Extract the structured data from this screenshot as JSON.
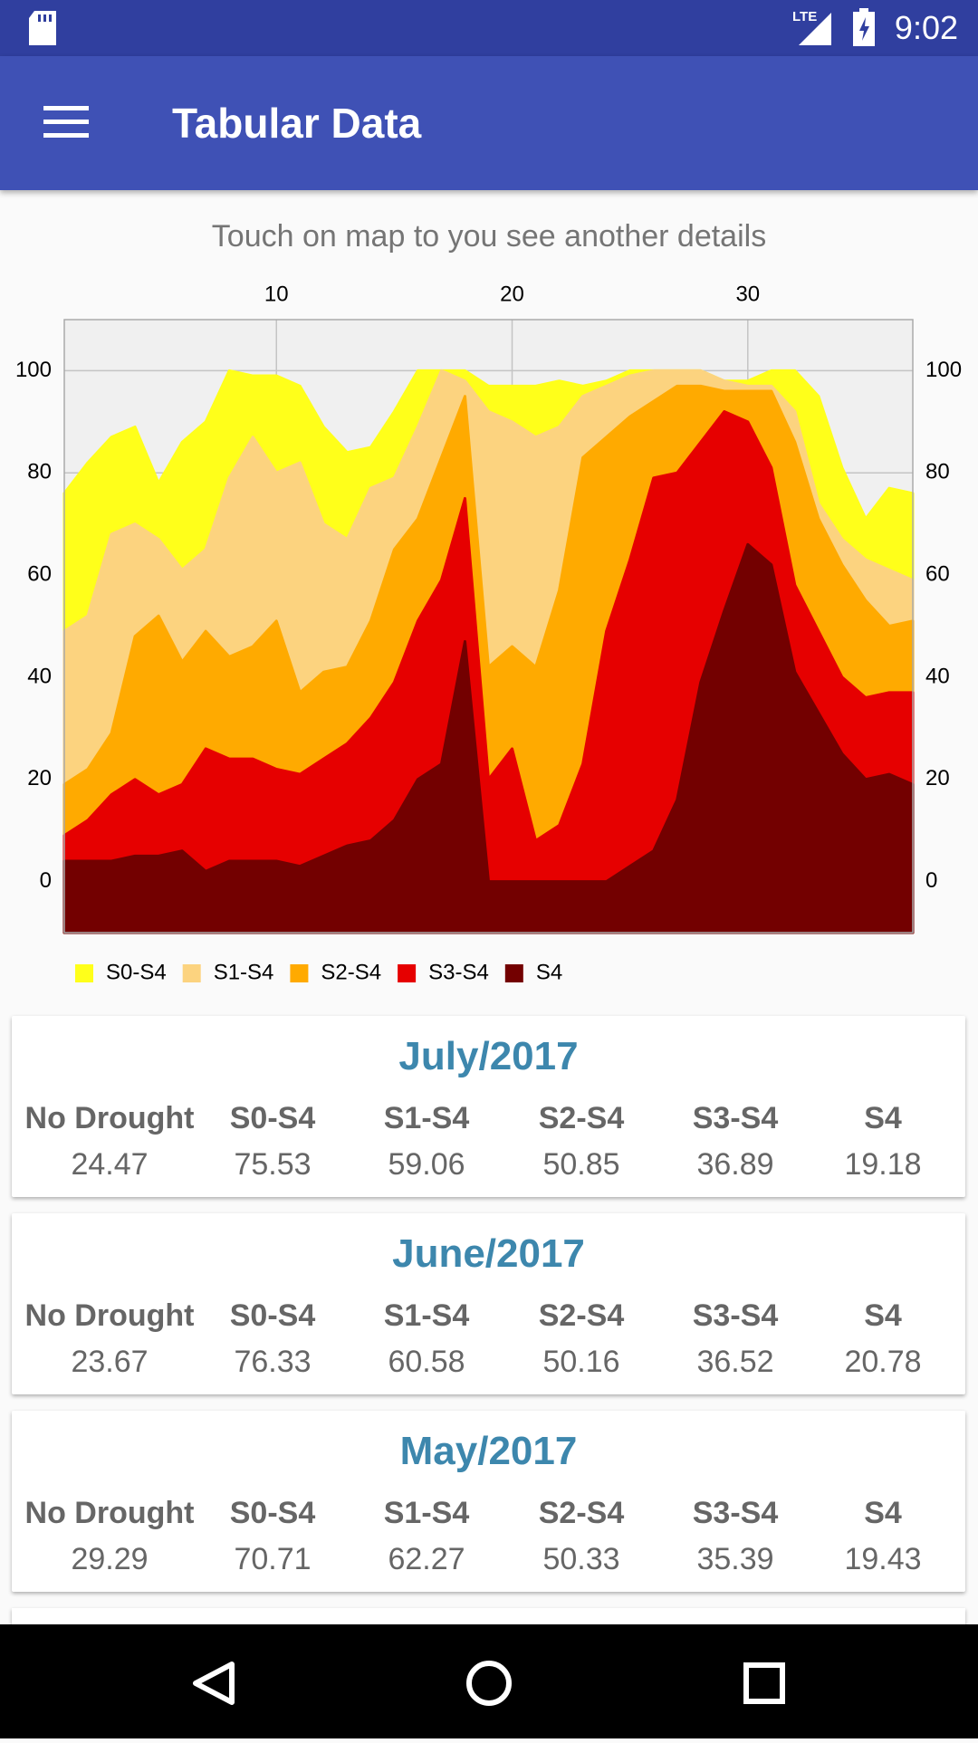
{
  "status_bar": {
    "network": "LTE",
    "time": "9:02"
  },
  "app_bar": {
    "title": "Tabular Data"
  },
  "instruction": "Touch on map to you see another details",
  "chart_data": {
    "type": "area",
    "x": [
      1,
      2,
      3,
      4,
      5,
      6,
      7,
      8,
      9,
      10,
      11,
      12,
      13,
      14,
      15,
      16,
      17,
      18,
      19,
      20,
      21,
      22,
      23,
      24,
      25,
      26,
      27,
      28,
      29,
      30,
      31,
      32,
      33,
      34,
      35,
      36,
      37
    ],
    "xlim": [
      1,
      37
    ],
    "xticks": [
      10,
      20,
      30
    ],
    "ylim": [
      -10,
      110
    ],
    "yticks": [
      0,
      20,
      40,
      60,
      80,
      100
    ],
    "grid": true,
    "legend_position": "bottom-left",
    "series": [
      {
        "name": "S0-S4",
        "color": "#ffff1a",
        "values": [
          76,
          82,
          87,
          89,
          78,
          86,
          90,
          100,
          99,
          99,
          97,
          89,
          84,
          85,
          92,
          100,
          100,
          100,
          97,
          97,
          97,
          98,
          97,
          98,
          100,
          100,
          100,
          100,
          98,
          98,
          100,
          100,
          95,
          81,
          71,
          77,
          76
        ]
      },
      {
        "name": "S1-S4",
        "color": "#fcd37f",
        "values": [
          49,
          52,
          68,
          70,
          67,
          61,
          65,
          79,
          87,
          80,
          82,
          70,
          67,
          77,
          79,
          89,
          100,
          98,
          92,
          90,
          87,
          89,
          95,
          97,
          99,
          100,
          100,
          100,
          98,
          97,
          97,
          92,
          74,
          67,
          63,
          61,
          59
        ]
      },
      {
        "name": "S2-S4",
        "color": "#ffaa00",
        "values": [
          19,
          22,
          29,
          48,
          52,
          43,
          49,
          44,
          46,
          51,
          37,
          41,
          42,
          51,
          65,
          71,
          83,
          95,
          42,
          46,
          42,
          57,
          83,
          87,
          91,
          94,
          97,
          97,
          96,
          96,
          96,
          86,
          71,
          62,
          55,
          50,
          51
        ]
      },
      {
        "name": "S3-S4",
        "color": "#e60000",
        "values": [
          9,
          12,
          17,
          20,
          17,
          19,
          26,
          24,
          24,
          22,
          21,
          24,
          27,
          32,
          39,
          51,
          59,
          75,
          20,
          26,
          8,
          11,
          23,
          49,
          63,
          79,
          80,
          86,
          92,
          90,
          81,
          58,
          49,
          40,
          36,
          37,
          37
        ]
      },
      {
        "name": "S4",
        "color": "#730000",
        "values": [
          4,
          4,
          4,
          5,
          5,
          6,
          2,
          4,
          4,
          4,
          3,
          5,
          7,
          8,
          12,
          20,
          23,
          47,
          0,
          0,
          0,
          0,
          0,
          0,
          3,
          6,
          16,
          39,
          53,
          66,
          62,
          41,
          33,
          25,
          20,
          21,
          19
        ]
      }
    ]
  },
  "cards": [
    {
      "title": "July/2017",
      "headers": [
        "No Drought",
        "S0-S4",
        "S1-S4",
        "S2-S4",
        "S3-S4",
        "S4"
      ],
      "values": [
        "24.47",
        "75.53",
        "59.06",
        "50.85",
        "36.89",
        "19.18"
      ]
    },
    {
      "title": "June/2017",
      "headers": [
        "No Drought",
        "S0-S4",
        "S1-S4",
        "S2-S4",
        "S3-S4",
        "S4"
      ],
      "values": [
        "23.67",
        "76.33",
        "60.58",
        "50.16",
        "36.52",
        "20.78"
      ]
    },
    {
      "title": "May/2017",
      "headers": [
        "No Drought",
        "S0-S4",
        "S1-S4",
        "S2-S4",
        "S3-S4",
        "S4"
      ],
      "values": [
        "29.29",
        "70.71",
        "62.27",
        "50.33",
        "35.39",
        "19.43"
      ]
    }
  ]
}
